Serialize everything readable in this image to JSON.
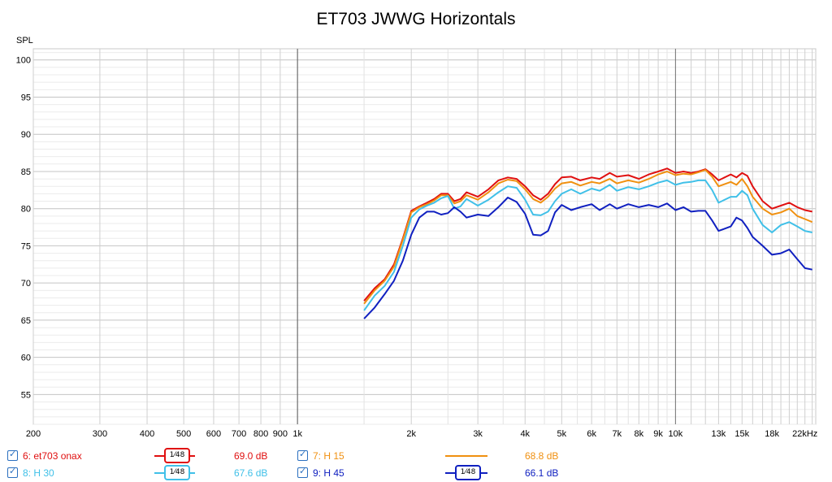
{
  "chart_data": {
    "type": "line",
    "title": "ET703 JWWG Horizontals",
    "ylabel": "SPL",
    "xlabel_unit": "Hz",
    "x_scale": "log",
    "xlim": [
      200,
      23500
    ],
    "ylim": [
      51,
      101.5
    ],
    "grid": true,
    "y_ticks": [
      55,
      60,
      65,
      70,
      75,
      80,
      85,
      90,
      95,
      100
    ],
    "x_ticks": [
      {
        "v": 200,
        "l": "200"
      },
      {
        "v": 300,
        "l": "300"
      },
      {
        "v": 400,
        "l": "400"
      },
      {
        "v": 500,
        "l": "500"
      },
      {
        "v": 600,
        "l": "600"
      },
      {
        "v": 700,
        "l": "700"
      },
      {
        "v": 800,
        "l": "800"
      },
      {
        "v": 900,
        "l": "900"
      },
      {
        "v": 1000,
        "l": "1k"
      },
      {
        "v": 2000,
        "l": "2k"
      },
      {
        "v": 3000,
        "l": "3k"
      },
      {
        "v": 4000,
        "l": "4k"
      },
      {
        "v": 5000,
        "l": "5k"
      },
      {
        "v": 6000,
        "l": "6k"
      },
      {
        "v": 7000,
        "l": "7k"
      },
      {
        "v": 8000,
        "l": "8k"
      },
      {
        "v": 9000,
        "l": "9k"
      },
      {
        "v": 10000,
        "l": "10k"
      },
      {
        "v": 13000,
        "l": "13k"
      },
      {
        "v": 15000,
        "l": "15k"
      },
      {
        "v": 18000,
        "l": "18k"
      },
      {
        "v": 22000,
        "l": "22kHz"
      }
    ],
    "series": [
      {
        "name": "6: et703 onax",
        "color": "#e01010",
        "level": "69.0 dB",
        "points": [
          [
            1500,
            67.6
          ],
          [
            1600,
            69.3
          ],
          [
            1700,
            70.5
          ],
          [
            1800,
            72.5
          ],
          [
            1900,
            76.0
          ],
          [
            2000,
            79.7
          ],
          [
            2100,
            80.3
          ],
          [
            2200,
            80.8
          ],
          [
            2300,
            81.3
          ],
          [
            2400,
            82.0
          ],
          [
            2500,
            82.0
          ],
          [
            2600,
            81.0
          ],
          [
            2700,
            81.3
          ],
          [
            2800,
            82.2
          ],
          [
            3000,
            81.6
          ],
          [
            3200,
            82.6
          ],
          [
            3400,
            83.8
          ],
          [
            3600,
            84.2
          ],
          [
            3800,
            84.0
          ],
          [
            4000,
            83.0
          ],
          [
            4200,
            81.8
          ],
          [
            4400,
            81.2
          ],
          [
            4600,
            82.0
          ],
          [
            4800,
            83.3
          ],
          [
            5000,
            84.2
          ],
          [
            5300,
            84.3
          ],
          [
            5600,
            83.8
          ],
          [
            6000,
            84.2
          ],
          [
            6300,
            84.0
          ],
          [
            6700,
            84.8
          ],
          [
            7000,
            84.3
          ],
          [
            7500,
            84.5
          ],
          [
            8000,
            84.0
          ],
          [
            8500,
            84.6
          ],
          [
            9000,
            85.0
          ],
          [
            9500,
            85.4
          ],
          [
            10000,
            84.8
          ],
          [
            10500,
            85.0
          ],
          [
            11000,
            84.8
          ],
          [
            11500,
            85.0
          ],
          [
            12000,
            85.3
          ],
          [
            12500,
            84.6
          ],
          [
            13000,
            83.8
          ],
          [
            14000,
            84.6
          ],
          [
            14500,
            84.2
          ],
          [
            15000,
            84.8
          ],
          [
            15500,
            84.4
          ],
          [
            16000,
            83.0
          ],
          [
            17000,
            81.0
          ],
          [
            18000,
            80.0
          ],
          [
            19000,
            80.4
          ],
          [
            20000,
            80.8
          ],
          [
            21000,
            80.2
          ],
          [
            22000,
            79.8
          ],
          [
            23000,
            79.6
          ]
        ]
      },
      {
        "name": "7: H 15",
        "color": "#f09010",
        "level": "68.8 dB",
        "points": [
          [
            1500,
            67.2
          ],
          [
            1600,
            69.0
          ],
          [
            1700,
            70.3
          ],
          [
            1800,
            72.2
          ],
          [
            1900,
            75.8
          ],
          [
            2000,
            79.5
          ],
          [
            2100,
            80.2
          ],
          [
            2200,
            80.6
          ],
          [
            2300,
            81.1
          ],
          [
            2400,
            81.8
          ],
          [
            2500,
            81.8
          ],
          [
            2600,
            80.7
          ],
          [
            2700,
            81.0
          ],
          [
            2800,
            81.8
          ],
          [
            3000,
            81.2
          ],
          [
            3200,
            82.2
          ],
          [
            3400,
            83.4
          ],
          [
            3600,
            83.9
          ],
          [
            3800,
            83.7
          ],
          [
            4000,
            82.6
          ],
          [
            4200,
            81.3
          ],
          [
            4400,
            80.8
          ],
          [
            4600,
            81.6
          ],
          [
            4800,
            82.7
          ],
          [
            5000,
            83.4
          ],
          [
            5300,
            83.6
          ],
          [
            5600,
            83.1
          ],
          [
            6000,
            83.6
          ],
          [
            6300,
            83.4
          ],
          [
            6700,
            84.0
          ],
          [
            7000,
            83.4
          ],
          [
            7500,
            83.8
          ],
          [
            8000,
            83.5
          ],
          [
            8500,
            84.0
          ],
          [
            9000,
            84.6
          ],
          [
            9500,
            85.0
          ],
          [
            10000,
            84.5
          ],
          [
            10500,
            84.7
          ],
          [
            11000,
            84.6
          ],
          [
            11500,
            84.9
          ],
          [
            12000,
            85.2
          ],
          [
            12500,
            84.3
          ],
          [
            13000,
            83.0
          ],
          [
            14000,
            83.6
          ],
          [
            14500,
            83.2
          ],
          [
            15000,
            84.0
          ],
          [
            15500,
            83.0
          ],
          [
            16000,
            81.6
          ],
          [
            17000,
            80.0
          ],
          [
            18000,
            79.2
          ],
          [
            19000,
            79.5
          ],
          [
            20000,
            80.0
          ],
          [
            21000,
            79.0
          ],
          [
            22000,
            78.6
          ],
          [
            23000,
            78.2
          ]
        ]
      },
      {
        "name": "8: H 30",
        "color": "#40c0e8",
        "level": "67.6 dB",
        "points": [
          [
            1500,
            66.3
          ],
          [
            1600,
            68.3
          ],
          [
            1700,
            69.6
          ],
          [
            1800,
            71.5
          ],
          [
            1900,
            75.0
          ],
          [
            2000,
            78.8
          ],
          [
            2100,
            79.9
          ],
          [
            2200,
            80.4
          ],
          [
            2300,
            80.8
          ],
          [
            2400,
            81.4
          ],
          [
            2500,
            81.7
          ],
          [
            2600,
            80.0
          ],
          [
            2700,
            80.3
          ],
          [
            2800,
            81.3
          ],
          [
            3000,
            80.4
          ],
          [
            3200,
            81.2
          ],
          [
            3400,
            82.2
          ],
          [
            3600,
            83.0
          ],
          [
            3800,
            82.8
          ],
          [
            4000,
            81.2
          ],
          [
            4200,
            79.2
          ],
          [
            4400,
            79.1
          ],
          [
            4600,
            79.6
          ],
          [
            4800,
            81.0
          ],
          [
            5000,
            82.0
          ],
          [
            5300,
            82.6
          ],
          [
            5600,
            82.0
          ],
          [
            6000,
            82.7
          ],
          [
            6300,
            82.4
          ],
          [
            6700,
            83.2
          ],
          [
            7000,
            82.4
          ],
          [
            7500,
            82.9
          ],
          [
            8000,
            82.6
          ],
          [
            8500,
            83.0
          ],
          [
            9000,
            83.5
          ],
          [
            9500,
            83.8
          ],
          [
            10000,
            83.2
          ],
          [
            10500,
            83.5
          ],
          [
            11000,
            83.6
          ],
          [
            11500,
            83.8
          ],
          [
            12000,
            83.8
          ],
          [
            12500,
            82.5
          ],
          [
            13000,
            80.8
          ],
          [
            14000,
            81.6
          ],
          [
            14500,
            81.6
          ],
          [
            15000,
            82.4
          ],
          [
            15500,
            81.8
          ],
          [
            16000,
            80.0
          ],
          [
            17000,
            77.8
          ],
          [
            18000,
            76.8
          ],
          [
            19000,
            77.8
          ],
          [
            20000,
            78.2
          ],
          [
            21000,
            77.6
          ],
          [
            22000,
            77.0
          ],
          [
            23000,
            76.8
          ]
        ]
      },
      {
        "name": "9: H 45",
        "color": "#1020c0",
        "level": "66.1 dB",
        "points": [
          [
            1500,
            65.2
          ],
          [
            1600,
            66.7
          ],
          [
            1700,
            68.5
          ],
          [
            1800,
            70.3
          ],
          [
            1900,
            73.0
          ],
          [
            2000,
            76.5
          ],
          [
            2100,
            78.8
          ],
          [
            2200,
            79.6
          ],
          [
            2300,
            79.6
          ],
          [
            2400,
            79.2
          ],
          [
            2500,
            79.4
          ],
          [
            2600,
            80.2
          ],
          [
            2700,
            79.6
          ],
          [
            2800,
            78.8
          ],
          [
            3000,
            79.2
          ],
          [
            3200,
            79.0
          ],
          [
            3400,
            80.2
          ],
          [
            3600,
            81.5
          ],
          [
            3800,
            80.9
          ],
          [
            4000,
            79.3
          ],
          [
            4200,
            76.5
          ],
          [
            4400,
            76.4
          ],
          [
            4600,
            77.0
          ],
          [
            4800,
            79.5
          ],
          [
            5000,
            80.5
          ],
          [
            5300,
            79.8
          ],
          [
            5600,
            80.2
          ],
          [
            6000,
            80.6
          ],
          [
            6300,
            79.8
          ],
          [
            6700,
            80.6
          ],
          [
            7000,
            80.0
          ],
          [
            7500,
            80.6
          ],
          [
            8000,
            80.2
          ],
          [
            8500,
            80.5
          ],
          [
            9000,
            80.2
          ],
          [
            9500,
            80.7
          ],
          [
            10000,
            79.8
          ],
          [
            10500,
            80.2
          ],
          [
            11000,
            79.6
          ],
          [
            11500,
            79.7
          ],
          [
            12000,
            79.7
          ],
          [
            12500,
            78.4
          ],
          [
            13000,
            77.0
          ],
          [
            14000,
            77.6
          ],
          [
            14500,
            78.8
          ],
          [
            15000,
            78.4
          ],
          [
            15500,
            77.4
          ],
          [
            16000,
            76.2
          ],
          [
            17000,
            75.0
          ],
          [
            18000,
            73.8
          ],
          [
            19000,
            74.0
          ],
          [
            20000,
            74.5
          ],
          [
            21000,
            73.2
          ],
          [
            22000,
            72.0
          ],
          [
            23000,
            71.8
          ]
        ]
      }
    ]
  },
  "legend": {
    "items": [
      {
        "label": "6: et703 onax",
        "color": "#e01010",
        "value": "69.0 dB",
        "badge": "1⁄48"
      },
      {
        "label": "7: H 15",
        "color": "#f09010",
        "value": "68.8 dB",
        "badge": ""
      },
      {
        "label": "8: H 30",
        "color": "#40c0e8",
        "value": "67.6 dB",
        "badge": "1⁄48"
      },
      {
        "label": "9: H 45",
        "color": "#1020c0",
        "value": "66.1 dB",
        "badge": "1⁄48"
      }
    ]
  }
}
